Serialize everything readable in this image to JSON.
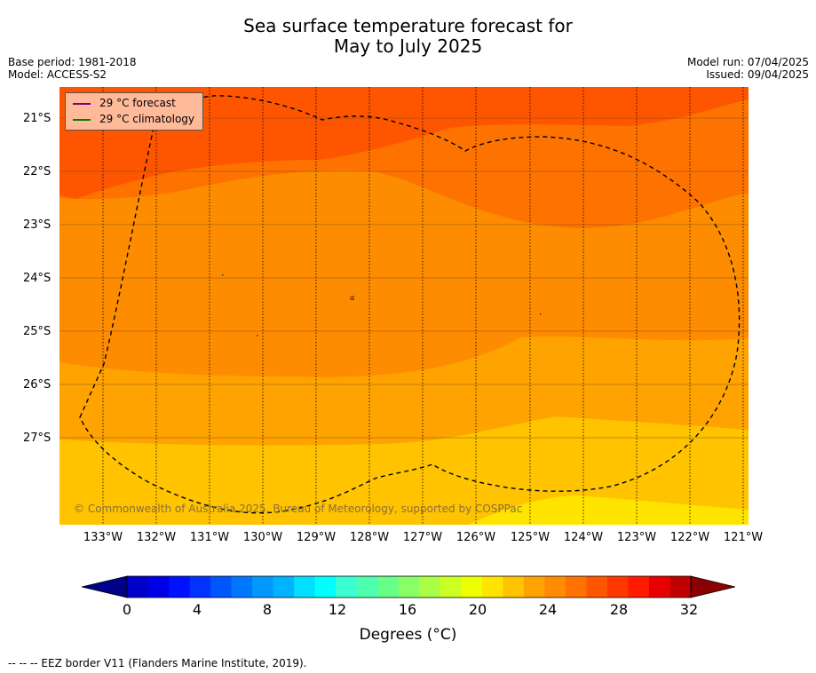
{
  "title": {
    "line1": "Sea surface temperature forecast for",
    "line2": "May to July 2025"
  },
  "meta": {
    "base_period": "Base period: 1981-2018",
    "model": "Model: ACCESS-S2",
    "model_run": "Model run: 07/04/2025",
    "issued": "Issued: 09/04/2025"
  },
  "map": {
    "lat_labels": [
      "21°S",
      "22°S",
      "23°S",
      "24°S",
      "25°S",
      "26°S",
      "27°S"
    ],
    "lon_labels": [
      "133°W",
      "132°W",
      "131°W",
      "130°W",
      "129°W",
      "128°W",
      "127°W",
      "126°W",
      "125°W",
      "124°W",
      "123°W",
      "122°W",
      "121°W"
    ],
    "legend": {
      "forecast_label": "29 °C  forecast",
      "forecast_color": "#800080",
      "climatology_label": "29 °C  climatology",
      "climatology_color": "#008000"
    },
    "copyright": "© Commonwealth of Australia 2025, Bureau of Meteorology, supported by COSPPac",
    "zone_colors": [
      "#fe5500",
      "#fe7200",
      "#fe8c00",
      "#ffa300",
      "#ffc300",
      "#ffe400"
    ]
  },
  "colorbar": {
    "tick_labels": [
      "0",
      "4",
      "8",
      "12",
      "16",
      "20",
      "24",
      "28",
      "32"
    ],
    "title": "Degrees (°C)",
    "colors": [
      "#00008b",
      "#0000c8",
      "#0000e6",
      "#0011ff",
      "#0033ff",
      "#0055ff",
      "#0077ff",
      "#0099ff",
      "#00b3ff",
      "#00dfff",
      "#00ffff",
      "#3bffd1",
      "#4effb0",
      "#66ff88",
      "#88ff66",
      "#aaff44",
      "#ccff22",
      "#eeff00",
      "#ffe400",
      "#ffc300",
      "#ffa300",
      "#ff8c00",
      "#ff7200",
      "#ff5500",
      "#ff3800",
      "#ff1a00",
      "#e60000",
      "#c00000",
      "#8b0000"
    ]
  },
  "footnote": "--  --  -- EEZ border V11 (Flanders Marine Institute, 2019)."
}
